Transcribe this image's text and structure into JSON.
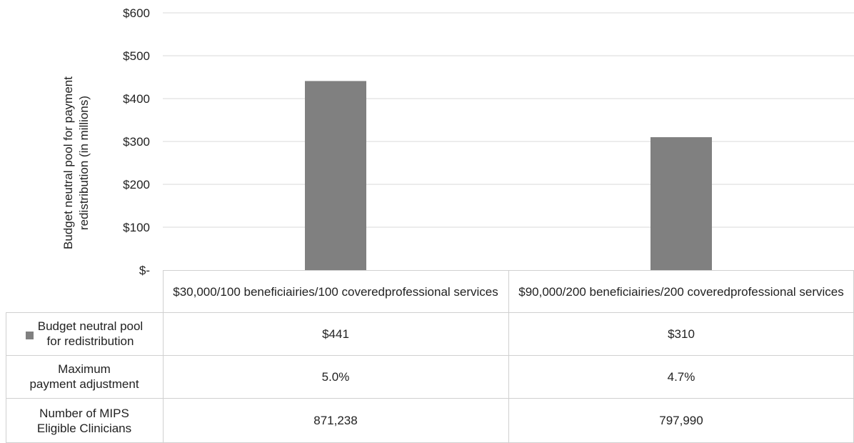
{
  "chart_data": {
    "type": "bar",
    "ylabel": "Budget neutral pool for payment redistribution (in millions)",
    "ylabel_lines": [
      "Budget neutral pool for payment",
      "redistribution (in millions)"
    ],
    "ylim": [
      0,
      600
    ],
    "yticks": [
      {
        "value": 0,
        "label": "$-"
      },
      {
        "value": 100,
        "label": "$100"
      },
      {
        "value": 200,
        "label": "$200"
      },
      {
        "value": 300,
        "label": "$300"
      },
      {
        "value": 400,
        "label": "$400"
      },
      {
        "value": 500,
        "label": "$500"
      },
      {
        "value": 600,
        "label": "$600"
      }
    ],
    "grid": true,
    "categories": [
      "$30,000/100 beneficiairies/100 covered professional services",
      "$90,000/200 beneficiairies/200 covered professional services"
    ],
    "category_lines": [
      [
        "$30,000/100 beneficiairies/100 covered",
        "professional services"
      ],
      [
        "$90,000/200 beneficiairies/200 covered",
        "professional services"
      ]
    ],
    "series": [
      {
        "name": "Budget neutral pool for redistribution",
        "values": [
          441,
          310
        ],
        "color": "#808080"
      }
    ]
  },
  "table": {
    "rows": [
      {
        "label_lines": [
          "Budget neutral pool",
          "for redistribution"
        ],
        "has_legend": true,
        "values": [
          "$441",
          "$310"
        ]
      },
      {
        "label_lines": [
          "Maximum",
          "payment adjustment"
        ],
        "has_legend": false,
        "values": [
          "5.0%",
          "4.7%"
        ]
      },
      {
        "label_lines": [
          "Number of MIPS",
          "Eligible Clinicians"
        ],
        "has_legend": false,
        "values": [
          "871,238",
          "797,990"
        ]
      }
    ]
  },
  "colors": {
    "bar": "#808080",
    "grid": "#d9d9d9",
    "table_border": "#d0d0d0"
  }
}
